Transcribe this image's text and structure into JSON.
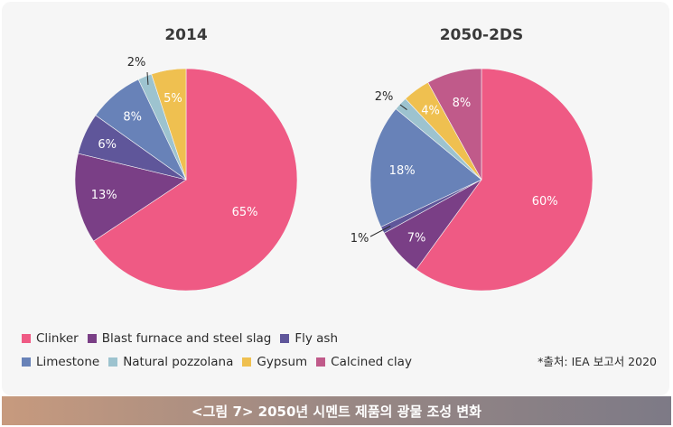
{
  "chart_data": [
    {
      "type": "pie",
      "title": "2014",
      "slices": [
        {
          "name": "Clinker",
          "value": 65,
          "label": "65%"
        },
        {
          "name": "Blast furnace and steel slag",
          "value": 13,
          "label": "13%"
        },
        {
          "name": "Fly ash",
          "value": 6,
          "label": "6%"
        },
        {
          "name": "Limestone",
          "value": 8,
          "label": "8%"
        },
        {
          "name": "Natural pozzolana",
          "value": 2,
          "label": "2%"
        },
        {
          "name": "Gypsum",
          "value": 5,
          "label": "5%"
        },
        {
          "name": "Calcined clay",
          "value": 0,
          "label": ""
        }
      ]
    },
    {
      "type": "pie",
      "title": "2050-2DS",
      "slices": [
        {
          "name": "Clinker",
          "value": 60,
          "label": "60%"
        },
        {
          "name": "Blast furnace and steel slag",
          "value": 7,
          "label": "7%"
        },
        {
          "name": "Fly ash",
          "value": 1,
          "label": "1%"
        },
        {
          "name": "Limestone",
          "value": 18,
          "label": "18%"
        },
        {
          "name": "Natural pozzolana",
          "value": 2,
          "label": "2%"
        },
        {
          "name": "Gypsum",
          "value": 4,
          "label": "4%"
        },
        {
          "name": "Calcined clay",
          "value": 8,
          "label": "8%"
        }
      ]
    }
  ],
  "legend": {
    "row1": [
      {
        "name": "Clinker",
        "color": "#ef5a84"
      },
      {
        "name": "Blast furnace and steel slag",
        "color": "#7a3f86"
      },
      {
        "name": "Fly ash",
        "color": "#5f569a"
      }
    ],
    "row2": [
      {
        "name": "Limestone",
        "color": "#6882b8"
      },
      {
        "name": "Natural pozzolana",
        "color": "#9dc3cf"
      },
      {
        "name": "Gypsum",
        "color": "#efc050"
      },
      {
        "name": "Calcined clay",
        "color": "#c05a8a"
      }
    ]
  },
  "colors": {
    "Clinker": "#ef5a84",
    "Blast furnace and steel slag": "#7a3f86",
    "Fly ash": "#5f569a",
    "Limestone": "#6882b8",
    "Natural pozzolana": "#9dc3cf",
    "Gypsum": "#efc050",
    "Calcined clay": "#c05a8a"
  },
  "source": "*출처: IEA 보고서 2020",
  "caption": "<그림 7> 2050년 시멘트 제품의 광물 조성 변화"
}
